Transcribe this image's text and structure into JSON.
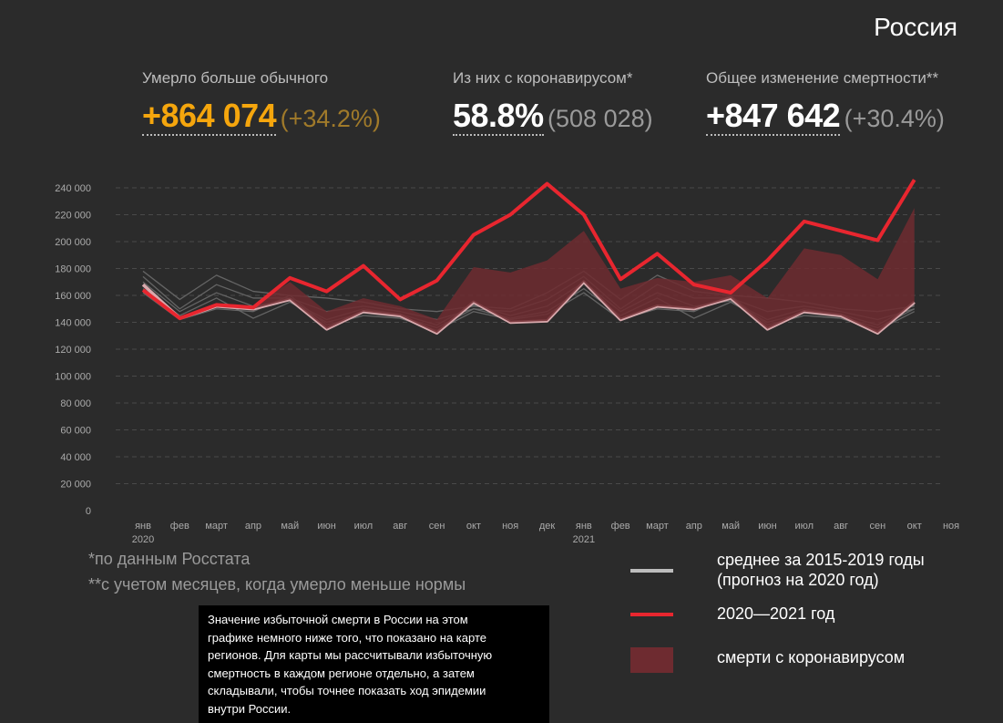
{
  "region": "Россия",
  "stats": [
    {
      "label": "Умерло больше обычного",
      "value": "+864 074",
      "extra": "(+34.2%)"
    },
    {
      "label": "Из них с коронавирусом*",
      "value": "58.8%",
      "extra": "(508 028)"
    },
    {
      "label": "Общее изменение смертности**",
      "value": "+847 642",
      "extra": "(+30.4%)"
    }
  ],
  "footnotes": [
    "*по данным Росстата",
    "**с учетом месяцев, когда умерло меньше нормы"
  ],
  "note": [
    "Значение избыточной смерти в России на этом",
    "графике немного ниже того, что показано на карте",
    "регионов. Для карты мы рассчитывали избыточную",
    "смертность в каждом регионе отдельно, а затем",
    "складывали, чтобы точнее показать ход эпидемии",
    "внутри России."
  ],
  "chart_data": {
    "type": "line",
    "categories": [
      "янв 2020",
      "фев",
      "март",
      "апр",
      "май",
      "июн",
      "июл",
      "авг",
      "сен",
      "окт",
      "ноя",
      "дек",
      "янв 2021",
      "фев",
      "март",
      "апр",
      "май",
      "июн",
      "июл",
      "авг",
      "сен",
      "окт",
      "ноя"
    ],
    "ylim": [
      0,
      240000
    ],
    "yticks": [
      0,
      {
        "value": 20000,
        "label": "20 000"
      },
      {
        "value": 40000,
        "label": "40 000"
      },
      {
        "value": 60000,
        "label": "60 000"
      },
      {
        "value": 80000,
        "label": "80 000"
      },
      {
        "value": 100000,
        "label": "100 000"
      },
      {
        "value": 120000,
        "label": "120 000"
      },
      {
        "value": 140000,
        "label": "140 000"
      },
      {
        "value": 160000,
        "label": "160 000"
      },
      {
        "value": 180000,
        "label": "180 000"
      },
      {
        "value": 200000,
        "label": "200 000"
      },
      {
        "value": 220000,
        "label": "220 000"
      },
      {
        "value": 240000,
        "label": "240 000"
      }
    ],
    "grid": true,
    "series": [
      {
        "name": "среднее за 2015-2019 годы (прогноз на 2020 год)",
        "color": "#d9a9ad",
        "values": [
          168000,
          143000,
          152000,
          150000,
          157000,
          135000,
          148000,
          145000,
          132000,
          155000,
          140000,
          141000,
          170000,
          142000,
          152000,
          150000,
          158000,
          135000,
          148000,
          145000,
          132000,
          155000,
          null
        ]
      },
      {
        "name": "смерти с коронавирусом",
        "color": "#6e2b30",
        "stacked": true,
        "values": [
          null,
          null,
          0,
          2000,
          13000,
          13000,
          10000,
          7000,
          10000,
          26000,
          37000,
          45000,
          38000,
          23000,
          21000,
          20000,
          17000,
          23000,
          47000,
          45000,
          40000,
          70000,
          null
        ]
      },
      {
        "name": "2020—2021 год",
        "color": "#e8262f",
        "values": [
          164000,
          143000,
          153000,
          151000,
          173000,
          163000,
          182000,
          157000,
          171000,
          205000,
          220000,
          243000,
          220000,
          172000,
          191000,
          168000,
          162000,
          186000,
          215000,
          208000,
          201000,
          246000,
          null
        ]
      },
      {
        "color": "#6a6a6a",
        "values": [
          178000,
          157000,
          175000,
          163000,
          160000,
          158000,
          155000,
          150000,
          148000,
          152000,
          150000,
          162000,
          178000,
          157000,
          175000,
          163000,
          160000,
          158000,
          155000,
          150000,
          148000,
          152000,
          null
        ]
      },
      {
        "color": "#6a6a6a",
        "values": [
          174000,
          150000,
          168000,
          158000,
          158000,
          148000,
          152000,
          148000,
          142000,
          150000,
          148000,
          157000,
          174000,
          150000,
          168000,
          158000,
          158000,
          148000,
          152000,
          148000,
          142000,
          150000,
          null
        ]
      },
      {
        "color": "#6a6a6a",
        "values": [
          170000,
          148000,
          162000,
          152000,
          156000,
          142000,
          150000,
          146000,
          138000,
          153000,
          145000,
          152000,
          170000,
          148000,
          162000,
          152000,
          156000,
          142000,
          150000,
          146000,
          138000,
          153000,
          null
        ]
      },
      {
        "color": "#6a6a6a",
        "values": [
          165000,
          145000,
          158000,
          143000,
          155000,
          140000,
          147000,
          144000,
          136000,
          150000,
          143000,
          148000,
          165000,
          145000,
          158000,
          143000,
          155000,
          140000,
          147000,
          144000,
          136000,
          150000,
          null
        ]
      },
      {
        "color": "#6a6a6a",
        "values": [
          162000,
          142000,
          150000,
          148000,
          160000,
          138000,
          145000,
          143000,
          134000,
          148000,
          142000,
          146000,
          162000,
          142000,
          150000,
          148000,
          160000,
          138000,
          145000,
          143000,
          134000,
          148000,
          null
        ]
      }
    ]
  }
}
